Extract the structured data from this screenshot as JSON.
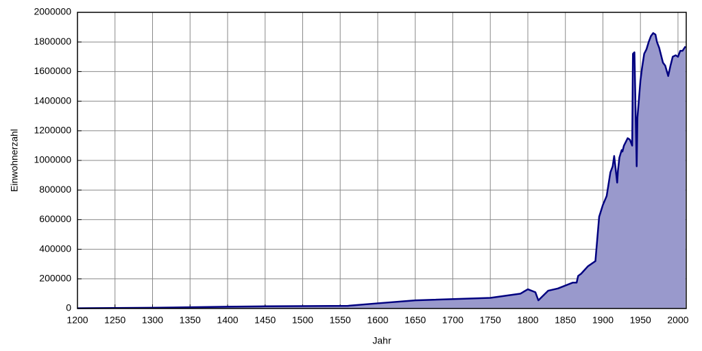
{
  "chart_data": {
    "type": "area",
    "xlabel": "Jahr",
    "ylabel": "Einwohnerzahl",
    "x": [
      1200,
      1300,
      1400,
      1450,
      1560,
      1600,
      1650,
      1750,
      1790,
      1800,
      1810,
      1814,
      1827,
      1840,
      1860,
      1865,
      1867,
      1871,
      1880,
      1890,
      1895,
      1900,
      1905,
      1910,
      1913,
      1915,
      1919,
      1920,
      1922,
      1925,
      1926,
      1928,
      1931,
      1933,
      1936,
      1939,
      1940,
      1942,
      1945,
      1946,
      1950,
      1952,
      1955,
      1958,
      1961,
      1964,
      1967,
      1970,
      1972,
      1975,
      1980,
      1983,
      1987,
      1990,
      1993,
      1997,
      2000,
      2003,
      2006,
      2010
    ],
    "values": [
      2000,
      5000,
      12000,
      15000,
      18000,
      35000,
      55000,
      72000,
      100000,
      130000,
      110000,
      55000,
      120000,
      135000,
      175000,
      175000,
      220000,
      235000,
      285000,
      320000,
      620000,
      700000,
      760000,
      920000,
      960000,
      1030000,
      850000,
      930000,
      1020000,
      1070000,
      1060000,
      1100000,
      1130000,
      1150000,
      1140000,
      1100000,
      1720000,
      1730000,
      960000,
      1290000,
      1540000,
      1620000,
      1720000,
      1750000,
      1800000,
      1840000,
      1860000,
      1850000,
      1800000,
      1760000,
      1660000,
      1640000,
      1570000,
      1640000,
      1700000,
      1710000,
      1700000,
      1740000,
      1740000,
      1770000
    ],
    "color": "#000080",
    "fill": "#9999cc",
    "xlim": [
      1200,
      2011
    ],
    "ylim": [
      0,
      2000000
    ],
    "xticks": [
      1200,
      1250,
      1300,
      1350,
      1400,
      1450,
      1500,
      1550,
      1600,
      1650,
      1700,
      1750,
      1800,
      1850,
      1900,
      1950,
      2000
    ],
    "yticks": [
      0,
      200000,
      400000,
      600000,
      800000,
      1000000,
      1200000,
      1400000,
      1600000,
      1800000,
      2000000
    ],
    "grid": true
  }
}
